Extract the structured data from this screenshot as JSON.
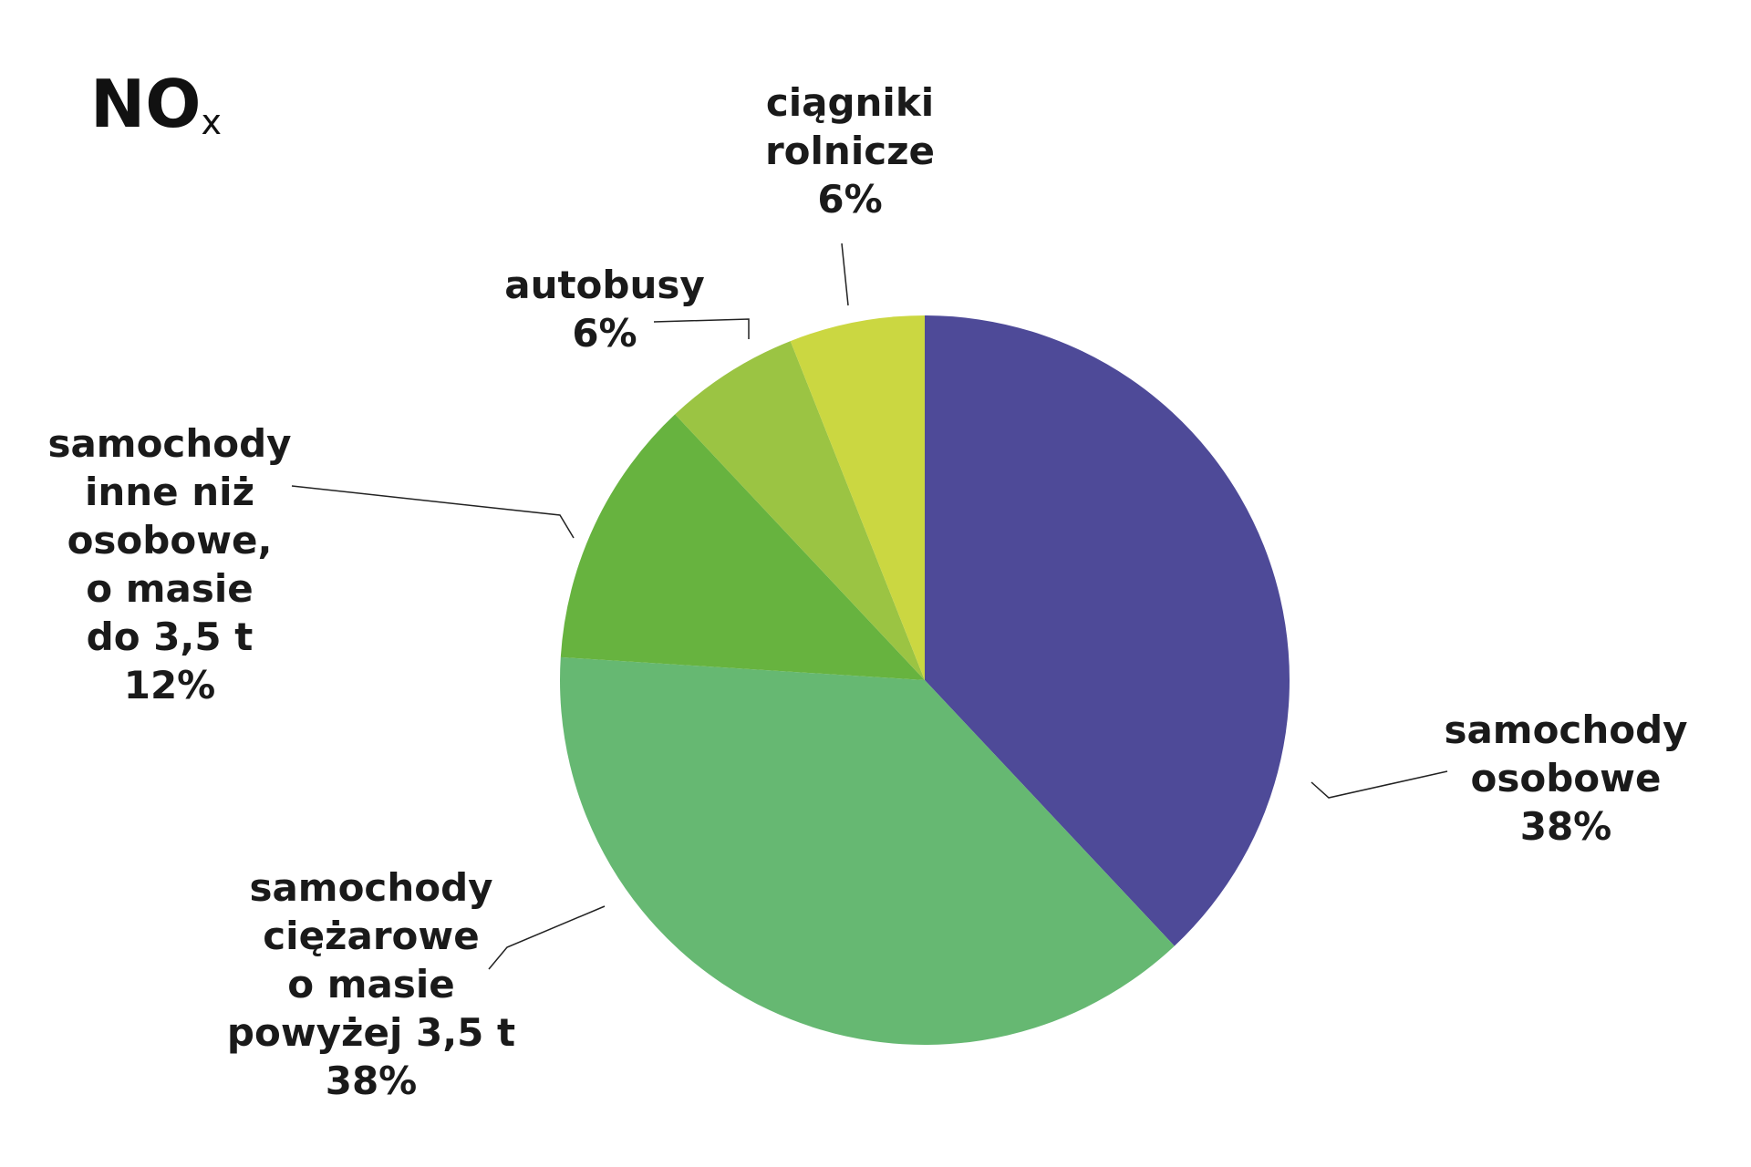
{
  "chart_data": {
    "type": "pie",
    "title": "NO",
    "title_subscript": "x",
    "categories": [
      "samochody\nosobowe",
      "samochody\nciężarowe\no masie\npowyżej 3,5 t",
      "samochody\ninne niż\nosobowe,\no masie\ndo 3,5 t",
      "autobusy",
      "ciągniki\nrolnicze"
    ],
    "values": [
      38,
      38,
      12,
      6,
      6
    ],
    "value_labels": [
      "38%",
      "38%",
      "12%",
      "6%",
      "6%"
    ],
    "colors": [
      "#4e4a98",
      "#66b872",
      "#67b33f",
      "#9bc443",
      "#cbd741"
    ]
  }
}
